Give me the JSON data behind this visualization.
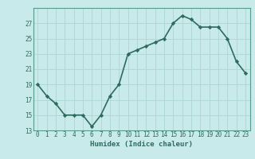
{
  "x": [
    0,
    1,
    2,
    3,
    4,
    5,
    6,
    7,
    8,
    9,
    10,
    11,
    12,
    13,
    14,
    15,
    16,
    17,
    18,
    19,
    20,
    21,
    22,
    23
  ],
  "y": [
    19,
    17.5,
    16.5,
    15,
    15,
    15,
    13.5,
    15,
    17.5,
    19,
    23,
    23.5,
    24,
    24.5,
    25,
    27,
    28,
    27.5,
    26.5,
    26.5,
    26.5,
    25,
    22,
    20.5
  ],
  "xlabel": "Humidex (Indice chaleur)",
  "ylim": [
    13,
    29
  ],
  "xlim": [
    -0.5,
    23.5
  ],
  "yticks": [
    13,
    15,
    17,
    19,
    21,
    23,
    25,
    27
  ],
  "xticks": [
    0,
    1,
    2,
    3,
    4,
    5,
    6,
    7,
    8,
    9,
    10,
    11,
    12,
    13,
    14,
    15,
    16,
    17,
    18,
    19,
    20,
    21,
    22,
    23
  ],
  "line_color": "#2e6b5e",
  "marker": "D",
  "marker_size": 2.2,
  "bg_color": "#c8eaea",
  "grid_color": "#b0d8d8",
  "tick_label_color": "#2e6b5e",
  "xlabel_color": "#2e6b5e",
  "line_width": 1.2,
  "spine_color": "#5a9a8a"
}
